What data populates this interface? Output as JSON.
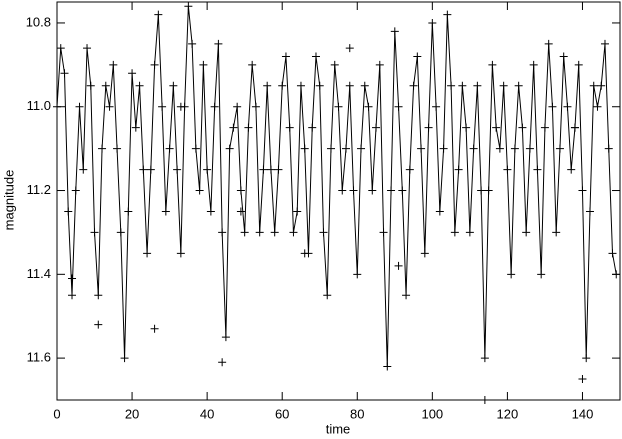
{
  "chart_data": {
    "type": "line",
    "xlabel": "time",
    "ylabel": "magnitude",
    "xlim": [
      0,
      150
    ],
    "xticks": [
      0,
      20,
      40,
      60,
      80,
      100,
      120,
      140
    ],
    "ylim": [
      10.75,
      11.7
    ],
    "invert_y": true,
    "yticks": [
      10.8,
      {
        "value": 11,
        "label": "11.0"
      },
      11.2,
      11.4,
      11.6
    ],
    "series": [
      {
        "color": "#000000",
        "marker": "+",
        "line": true,
        "x": [
          0,
          1,
          2,
          3,
          4,
          5,
          6,
          7,
          8,
          9,
          10,
          11,
          12,
          13,
          14,
          15,
          16,
          17,
          18,
          19,
          20,
          21,
          22,
          23,
          24,
          25,
          26,
          27,
          28,
          29,
          30,
          31,
          32,
          33,
          34,
          35,
          36,
          37,
          38,
          39,
          40,
          41,
          42,
          43,
          44,
          45,
          46,
          47,
          48,
          49,
          50,
          51,
          52,
          53,
          54,
          55,
          56,
          57,
          58,
          59,
          60,
          61,
          62,
          63,
          64,
          65,
          66,
          67,
          68,
          69,
          70,
          71,
          72,
          73,
          74,
          75,
          76,
          77,
          78,
          79,
          80,
          81,
          82,
          83,
          84,
          85,
          86,
          87,
          88,
          89,
          90,
          91,
          92,
          93,
          94,
          95,
          96,
          97,
          98,
          99,
          100,
          101,
          102,
          103,
          104,
          105,
          106,
          107,
          108,
          109,
          110,
          111,
          112,
          113,
          114,
          115,
          116,
          117,
          118,
          119,
          120,
          121,
          122,
          123,
          124,
          125,
          126,
          127,
          128,
          129,
          130,
          131,
          132,
          133,
          134,
          135,
          136,
          137,
          138,
          139,
          140,
          141,
          142,
          143,
          144,
          145,
          146,
          147,
          148,
          149
        ],
        "values": [
          11.0,
          10.86,
          10.92,
          11.25,
          11.45,
          11.2,
          11.0,
          11.15,
          10.86,
          10.95,
          11.3,
          11.45,
          11.1,
          10.95,
          11.0,
          10.9,
          11.1,
          11.3,
          11.6,
          11.25,
          10.92,
          11.05,
          10.95,
          11.15,
          11.35,
          11.15,
          10.9,
          10.78,
          11.0,
          11.25,
          11.1,
          10.95,
          11.15,
          11.35,
          11.0,
          10.76,
          10.85,
          11.1,
          11.2,
          10.9,
          11.15,
          11.25,
          11.0,
          10.85,
          11.3,
          11.55,
          11.1,
          11.05,
          11.0,
          11.2,
          11.3,
          11.05,
          10.9,
          11.0,
          11.3,
          11.15,
          10.95,
          11.15,
          11.3,
          11.15,
          10.95,
          10.88,
          11.05,
          11.3,
          11.25,
          10.95,
          11.1,
          11.35,
          11.05,
          10.88,
          10.95,
          11.3,
          11.45,
          11.1,
          10.9,
          11.0,
          11.2,
          11.1,
          10.95,
          11.2,
          11.4,
          11.1,
          10.95,
          11.0,
          11.2,
          11.05,
          10.9,
          11.3,
          11.62,
          11.2,
          10.82,
          11.0,
          11.2,
          11.45,
          11.15,
          10.95,
          10.88,
          11.1,
          11.35,
          11.05,
          10.8,
          11.0,
          11.25,
          11.1,
          10.78,
          10.95,
          11.3,
          11.15,
          10.95,
          11.05,
          11.3,
          11.1,
          10.95,
          11.2,
          11.6,
          11.2,
          10.9,
          11.05,
          11.1,
          10.95,
          11.15,
          11.4,
          11.1,
          10.95,
          11.05,
          11.3,
          11.1,
          10.9,
          11.15,
          11.4,
          11.05,
          10.85,
          11.0,
          11.3,
          11.1,
          10.88,
          11.0,
          11.15,
          11.05,
          10.9,
          11.2,
          11.6,
          11.25,
          10.95,
          11.0,
          10.95,
          10.85,
          11.1,
          11.35,
          11.4
        ]
      },
      {
        "color": "#000000",
        "marker": "+",
        "line": false,
        "x": [
          11,
          26,
          44,
          78,
          91,
          114,
          140,
          33,
          66,
          49,
          138,
          4
        ],
        "values": [
          11.52,
          11.53,
          11.61,
          10.86,
          11.38,
          11.7,
          11.65,
          11.0,
          11.35,
          11.25,
          11.05,
          11.41
        ]
      }
    ]
  }
}
